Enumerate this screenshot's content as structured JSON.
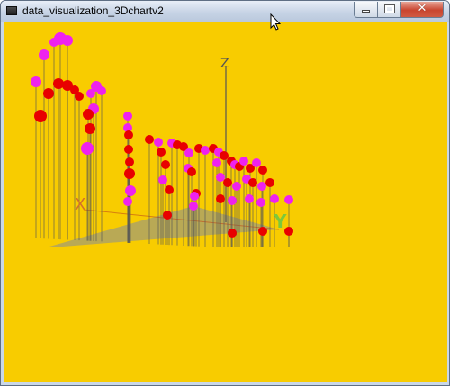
{
  "window": {
    "title": "data_visualization_3Dchartv2",
    "buttons": {
      "minimize": "",
      "maximize": "",
      "close": ""
    }
  },
  "scene": {
    "background_color": "#f8cc00",
    "floor_color": "#b5a75a",
    "axis_labels": {
      "x": "X",
      "y": "Y",
      "z": "Z"
    },
    "axis_colors": {
      "x": "#d4702a",
      "y": "#7cc83c",
      "z": "#555555"
    },
    "marker_colors": {
      "primary": "#e80000",
      "secondary": "#ee22ee"
    }
  }
}
